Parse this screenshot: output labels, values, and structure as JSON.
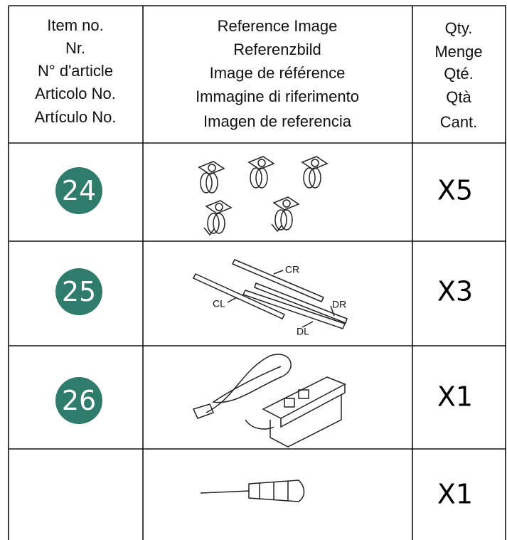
{
  "table": {
    "header": {
      "item": [
        "Item no.",
        "Nr.",
        "N° d'article",
        "Articolo No.",
        "Artículo No."
      ],
      "image": [
        "Reference Image",
        "Referenzbild",
        "Image de référence",
        "Immagine di riferimento",
        "Imagen de referencia"
      ],
      "qty": [
        "Qty.",
        "Menge",
        "Qté.",
        "Qtà",
        "Cant."
      ]
    },
    "rows": [
      {
        "item": "24",
        "qty": "X5"
      },
      {
        "item": "25",
        "labels": [
          "CR",
          "DR",
          "CL",
          "DL"
        ],
        "qty": "X3"
      },
      {
        "item": "26",
        "qty": "X1"
      },
      {
        "qty": "X1"
      }
    ]
  }
}
